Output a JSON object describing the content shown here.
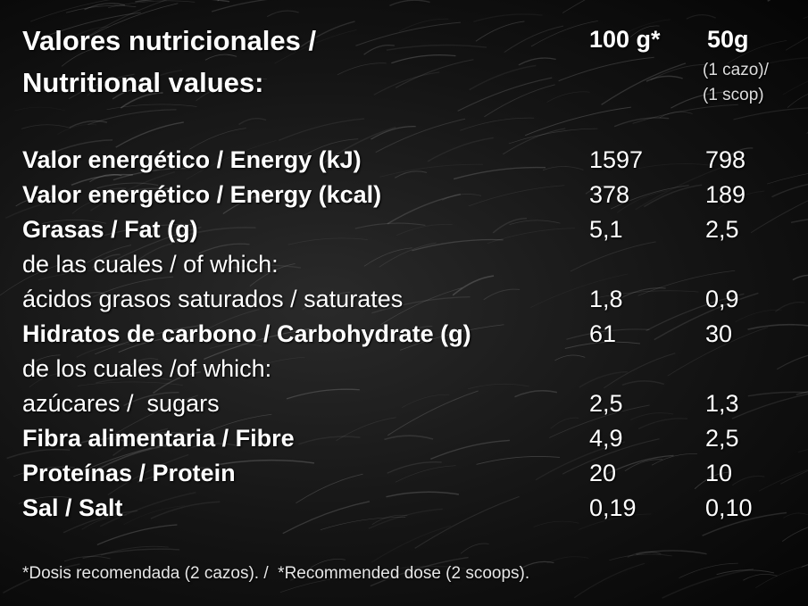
{
  "header": {
    "title_lines": [
      "Valores nutricionales /",
      "Nutritional values:"
    ],
    "col_100": "100 g*",
    "col_50": "50g",
    "col_50_note": [
      "(1 cazo)/",
      "(1 scop)"
    ]
  },
  "table": {
    "rows": [
      {
        "label": "Valor energético / Energy (kJ)",
        "bold": true,
        "v100": "1597",
        "v50": "798"
      },
      {
        "label": "Valor energético / Energy (kcal)",
        "bold": true,
        "v100": "378",
        "v50": "189"
      },
      {
        "label": "Grasas / Fat (g)",
        "bold": true,
        "v100": "5,1",
        "v50": "2,5"
      },
      {
        "label": "de las cuales / of which:",
        "bold": false,
        "v100": null,
        "v50": null
      },
      {
        "label": "ácidos grasos saturados / saturates",
        "bold": false,
        "v100": "1,8",
        "v50": "0,9"
      },
      {
        "label": "Hidratos de carbono / Carbohydrate (g)",
        "bold": true,
        "v100": "61",
        "v50": "30"
      },
      {
        "label": "de los cuales /of which:",
        "bold": false,
        "v100": null,
        "v50": null
      },
      {
        "label": "azúcares /  sugars",
        "bold": false,
        "v100": "2,5",
        "v50": "1,3"
      },
      {
        "label": "Fibra alimentaria / Fibre",
        "bold": true,
        "v100": "4,9",
        "v50": "2,5"
      },
      {
        "label": "Proteínas / Protein",
        "bold": true,
        "v100": "20",
        "v50": "10"
      },
      {
        "label": "Sal / Salt",
        "bold": true,
        "v100": "0,19",
        "v50": "0,10"
      }
    ]
  },
  "footnote": "*Dosis recomendada (2 cazos). /  *Recommended dose (2 scoops)."
}
